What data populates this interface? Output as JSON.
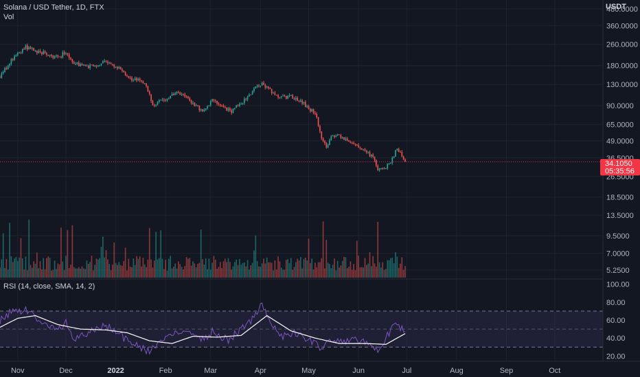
{
  "header": {
    "symbol": "Solana / USD Tether, 1D, FTX",
    "volume_label": "Vol",
    "currency": "USDT"
  },
  "rsi_panel": {
    "label": "RSI (14, close, SMA, 14, 2)"
  },
  "last_price": {
    "value": "34.1050",
    "countdown": "05:35:56",
    "color": "#f23645"
  },
  "colors": {
    "up": "#26a69a",
    "down": "#ef5350",
    "rsi_line": "#7e57c2",
    "rsi_ma": "#ffffff",
    "background": "#131722"
  },
  "chart_data": [
    {
      "type": "candlestick",
      "title": "Solana / USD Tether, 1D, FTX",
      "y_scale": "log",
      "ylim": [
        4.6,
        560
      ],
      "y_ticks": [
        "480.0000",
        "360.0000",
        "260.0000",
        "180.0000",
        "130.0000",
        "90.0000",
        "65.0000",
        "49.0000",
        "36.5000",
        "26.5000",
        "18.5000",
        "13.5000",
        "9.5000",
        "7.0000",
        "5.2500"
      ],
      "x_ticks": [
        "Nov",
        "Dec",
        "2022",
        "Feb",
        "Mar",
        "Apr",
        "May",
        "Jun",
        "Jul",
        "Aug",
        "Sep",
        "Oct"
      ],
      "x_range": [
        "2021-10-21",
        "2022-10-31"
      ],
      "close_anchors": [
        [
          "2021-10-21",
          150
        ],
        [
          "2021-10-28",
          195
        ],
        [
          "2021-11-06",
          250
        ],
        [
          "2021-11-12",
          232
        ],
        [
          "2021-11-20",
          220
        ],
        [
          "2021-11-26",
          205
        ],
        [
          "2021-12-01",
          230
        ],
        [
          "2021-12-05",
          190
        ],
        [
          "2021-12-12",
          178
        ],
        [
          "2021-12-20",
          178
        ],
        [
          "2021-12-26",
          195
        ],
        [
          "2022-01-01",
          178
        ],
        [
          "2022-01-05",
          165
        ],
        [
          "2022-01-10",
          142
        ],
        [
          "2022-01-15",
          145
        ],
        [
          "2022-01-20",
          128
        ],
        [
          "2022-01-24",
          90
        ],
        [
          "2022-01-31",
          100
        ],
        [
          "2022-02-08",
          115
        ],
        [
          "2022-02-15",
          100
        ],
        [
          "2022-02-24",
          82
        ],
        [
          "2022-03-02",
          100
        ],
        [
          "2022-03-10",
          85
        ],
        [
          "2022-03-14",
          82
        ],
        [
          "2022-03-20",
          95
        ],
        [
          "2022-03-27",
          115
        ],
        [
          "2022-04-02",
          135
        ],
        [
          "2022-04-06",
          120
        ],
        [
          "2022-04-12",
          104
        ],
        [
          "2022-04-20",
          105
        ],
        [
          "2022-04-26",
          97
        ],
        [
          "2022-05-01",
          87
        ],
        [
          "2022-05-06",
          75
        ],
        [
          "2022-05-09",
          50
        ],
        [
          "2022-05-12",
          45
        ],
        [
          "2022-05-16",
          55
        ],
        [
          "2022-05-24",
          50
        ],
        [
          "2022-05-31",
          45
        ],
        [
          "2022-06-06",
          40
        ],
        [
          "2022-06-10",
          37
        ],
        [
          "2022-06-13",
          29
        ],
        [
          "2022-06-18",
          31
        ],
        [
          "2022-06-22",
          36
        ],
        [
          "2022-06-25",
          43
        ],
        [
          "2022-06-28",
          38
        ],
        [
          "2022-06-30",
          34.105
        ]
      ],
      "volume": {
        "scale_ylim_note": "volume overlay at bottom of price pane",
        "spike_days": [
          "2021-10-23",
          "2021-10-27",
          "2021-11-08",
          "2021-11-28",
          "2021-12-05",
          "2022-01-22",
          "2022-05-10",
          "2022-05-12",
          "2022-06-13"
        ]
      }
    },
    {
      "type": "line",
      "title": "RSI (14, close, SMA, 14, 2)",
      "ylim": [
        15,
        105
      ],
      "y_ticks": [
        "100.00",
        "80.00",
        "60.00",
        "40.00",
        "20.00"
      ],
      "bands": {
        "upper": 70,
        "middle": 50,
        "lower": 30
      },
      "series": [
        {
          "name": "RSI",
          "color": "#7e57c2",
          "anchors": [
            [
              "2021-10-21",
              60
            ],
            [
              "2021-10-27",
              68
            ],
            [
              "2021-11-06",
              72
            ],
            [
              "2021-11-12",
              63
            ],
            [
              "2021-11-20",
              52
            ],
            [
              "2021-11-26",
              48
            ],
            [
              "2021-12-01",
              58
            ],
            [
              "2021-12-06",
              38
            ],
            [
              "2021-12-15",
              47
            ],
            [
              "2021-12-26",
              54
            ],
            [
              "2022-01-04",
              43
            ],
            [
              "2022-01-10",
              35
            ],
            [
              "2022-01-22",
              25
            ],
            [
              "2022-01-30",
              37
            ],
            [
              "2022-02-09",
              47
            ],
            [
              "2022-02-15",
              45
            ],
            [
              "2022-02-24",
              38
            ],
            [
              "2022-03-02",
              47
            ],
            [
              "2022-03-12",
              38
            ],
            [
              "2022-03-18",
              47
            ],
            [
              "2022-03-26",
              60
            ],
            [
              "2022-04-02",
              78
            ],
            [
              "2022-04-08",
              52
            ],
            [
              "2022-04-15",
              42
            ],
            [
              "2022-04-22",
              45
            ],
            [
              "2022-05-02",
              38
            ],
            [
              "2022-05-10",
              28
            ],
            [
              "2022-05-14",
              40
            ],
            [
              "2022-05-22",
              36
            ],
            [
              "2022-06-01",
              38
            ],
            [
              "2022-06-10",
              32
            ],
            [
              "2022-06-13",
              25
            ],
            [
              "2022-06-18",
              40
            ],
            [
              "2022-06-24",
              58
            ],
            [
              "2022-06-30",
              45
            ]
          ]
        },
        {
          "name": "RSI-based MA",
          "color": "#ffffff",
          "anchors": [
            [
              "2021-10-21",
              52
            ],
            [
              "2021-11-01",
              62
            ],
            [
              "2021-11-12",
              65
            ],
            [
              "2021-11-26",
              55
            ],
            [
              "2021-12-10",
              50
            ],
            [
              "2021-12-26",
              49
            ],
            [
              "2022-01-08",
              46
            ],
            [
              "2022-01-22",
              37
            ],
            [
              "2022-02-05",
              34
            ],
            [
              "2022-02-18",
              42
            ],
            [
              "2022-03-05",
              41
            ],
            [
              "2022-03-20",
              43
            ],
            [
              "2022-04-05",
              65
            ],
            [
              "2022-04-20",
              48
            ],
            [
              "2022-05-05",
              40
            ],
            [
              "2022-05-20",
              34
            ],
            [
              "2022-06-05",
              34
            ],
            [
              "2022-06-18",
              33
            ],
            [
              "2022-06-30",
              45
            ]
          ]
        }
      ]
    }
  ]
}
